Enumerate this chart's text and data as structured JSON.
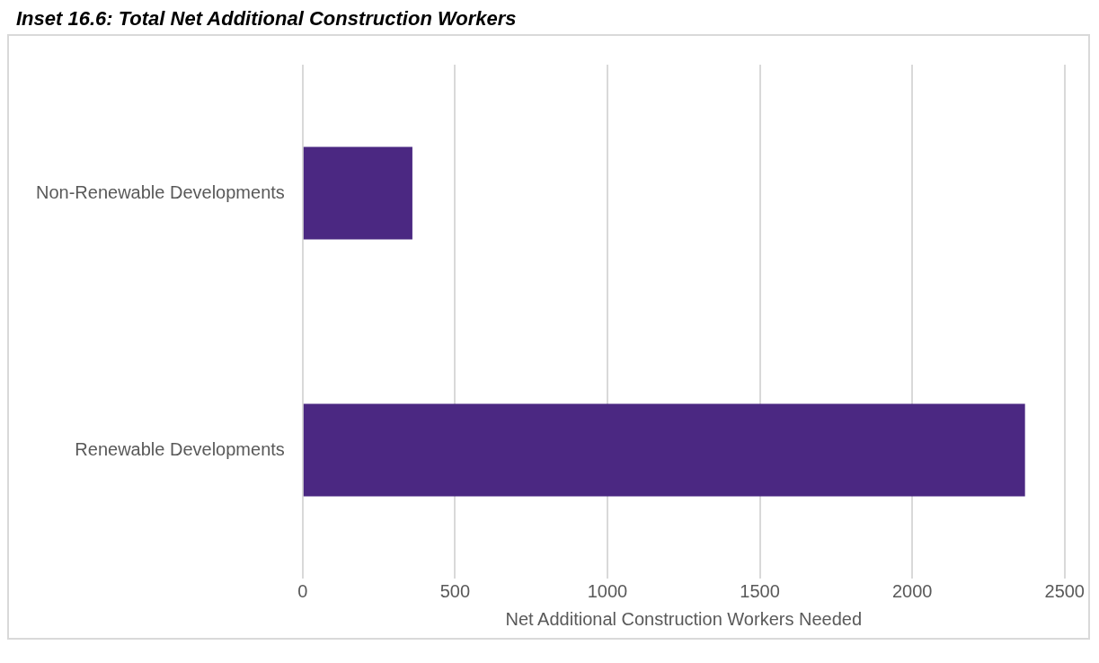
{
  "chart_data": {
    "type": "bar",
    "orientation": "horizontal",
    "title": "Inset 16.6: Total Net Additional Construction Workers",
    "xlabel": "Net Additional Construction Workers Needed",
    "categories": [
      "Non-Renewable Developments",
      "Renewable Developments"
    ],
    "values": [
      360,
      2370
    ],
    "color": "#4b2882",
    "xlim": [
      0,
      2500
    ],
    "xticks": [
      0,
      500,
      1000,
      1500,
      2000,
      2500
    ],
    "grid": "x",
    "legend": false
  }
}
